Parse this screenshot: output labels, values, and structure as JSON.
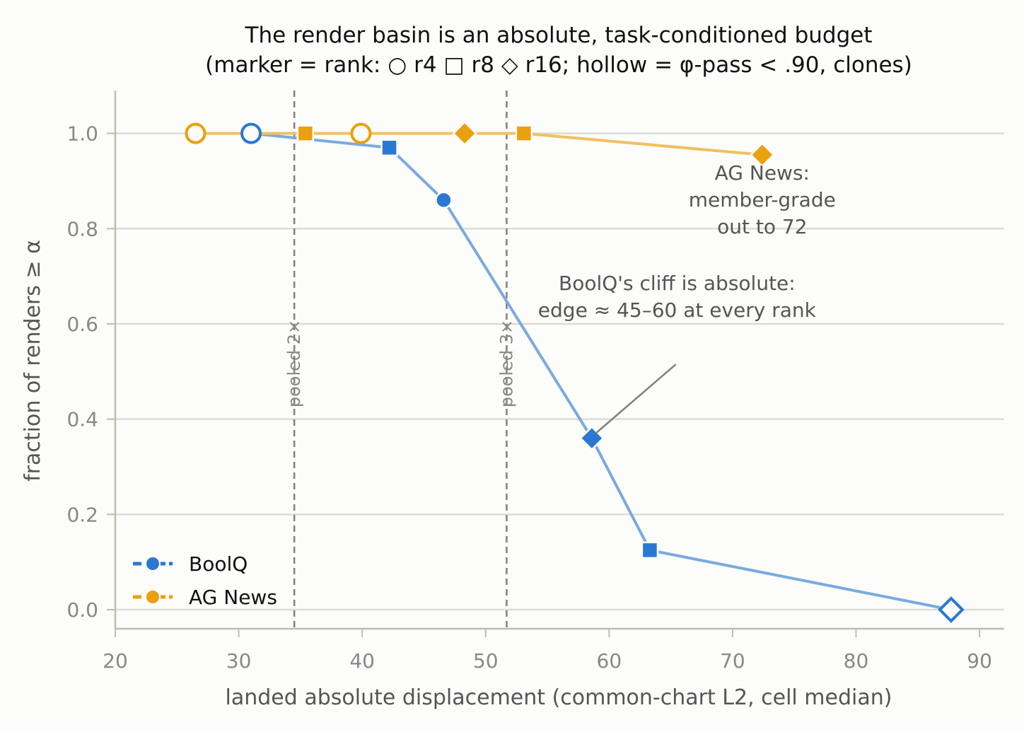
{
  "chart_data": {
    "type": "line",
    "title_line1": "The render basin is an absolute, task-conditioned budget",
    "title_line2": "(marker = rank: ○ r4  □ r8  ◇ r16; hollow = φ-pass < .90, clones)",
    "xlabel": "landed absolute displacement (common-chart L2, cell median)",
    "ylabel": "fraction of renders ≥ α",
    "xlim": [
      20,
      92
    ],
    "ylim": [
      -0.04,
      1.09
    ],
    "xticks": [
      20,
      30,
      40,
      50,
      60,
      70,
      80,
      90
    ],
    "yticks": [
      0.0,
      0.2,
      0.4,
      0.6,
      0.8,
      1.0
    ],
    "xtick_labels": [
      "20",
      "30",
      "40",
      "50",
      "60",
      "70",
      "80",
      "90"
    ],
    "ytick_labels": [
      "0.0",
      "0.2",
      "0.4",
      "0.6",
      "0.8",
      "1.0"
    ],
    "grid": "horizontal",
    "legend_position": "lower-left",
    "series": [
      {
        "name": "BoolQ",
        "color": "#2a78d4",
        "line_color": "#7aaae0",
        "points": [
          {
            "x": 31.0,
            "y": 1.0,
            "rank": "r4",
            "marker": "circle",
            "hollow": true
          },
          {
            "x": 42.2,
            "y": 0.97,
            "rank": "r8",
            "marker": "square",
            "hollow": false
          },
          {
            "x": 46.6,
            "y": 0.86,
            "rank": "r4",
            "marker": "circle",
            "hollow": false
          },
          {
            "x": 58.6,
            "y": 0.36,
            "rank": "r16",
            "marker": "diamond",
            "hollow": false
          },
          {
            "x": 63.3,
            "y": 0.125,
            "rank": "r8",
            "marker": "square",
            "hollow": false
          },
          {
            "x": 87.7,
            "y": 0.0,
            "rank": "r16",
            "marker": "diamond",
            "hollow": true
          }
        ]
      },
      {
        "name": "AG News",
        "color": "#eba00f",
        "line_color": "#f0c060",
        "points": [
          {
            "x": 26.5,
            "y": 1.0,
            "rank": "r4",
            "marker": "circle",
            "hollow": true
          },
          {
            "x": 35.4,
            "y": 1.0,
            "rank": "r8",
            "marker": "square",
            "hollow": false
          },
          {
            "x": 39.9,
            "y": 1.0,
            "rank": "r4",
            "marker": "circle",
            "hollow": true
          },
          {
            "x": 48.3,
            "y": 1.0,
            "rank": "r16",
            "marker": "diamond",
            "hollow": false
          },
          {
            "x": 53.1,
            "y": 1.0,
            "rank": "r8",
            "marker": "square",
            "hollow": false
          },
          {
            "x": 72.4,
            "y": 0.955,
            "rank": "r16",
            "marker": "diamond",
            "hollow": false
          }
        ]
      }
    ],
    "vlines": [
      {
        "x": 34.5,
        "label": "pooled 2×"
      },
      {
        "x": 51.7,
        "label": "pooled 3×"
      }
    ],
    "annotations": [
      {
        "lines": [
          "AG News:",
          "member-grade",
          "out to 72"
        ],
        "x": 72.4,
        "y": 0.79
      },
      {
        "lines": [
          "BoolQ's cliff is absolute:",
          "edge ≈ 45–60 at every rank"
        ],
        "x": 65.5,
        "y": 0.615,
        "arrow_from": [
          65.4,
          0.515
        ],
        "arrow_to": [
          58.9,
          0.37
        ]
      }
    ]
  }
}
